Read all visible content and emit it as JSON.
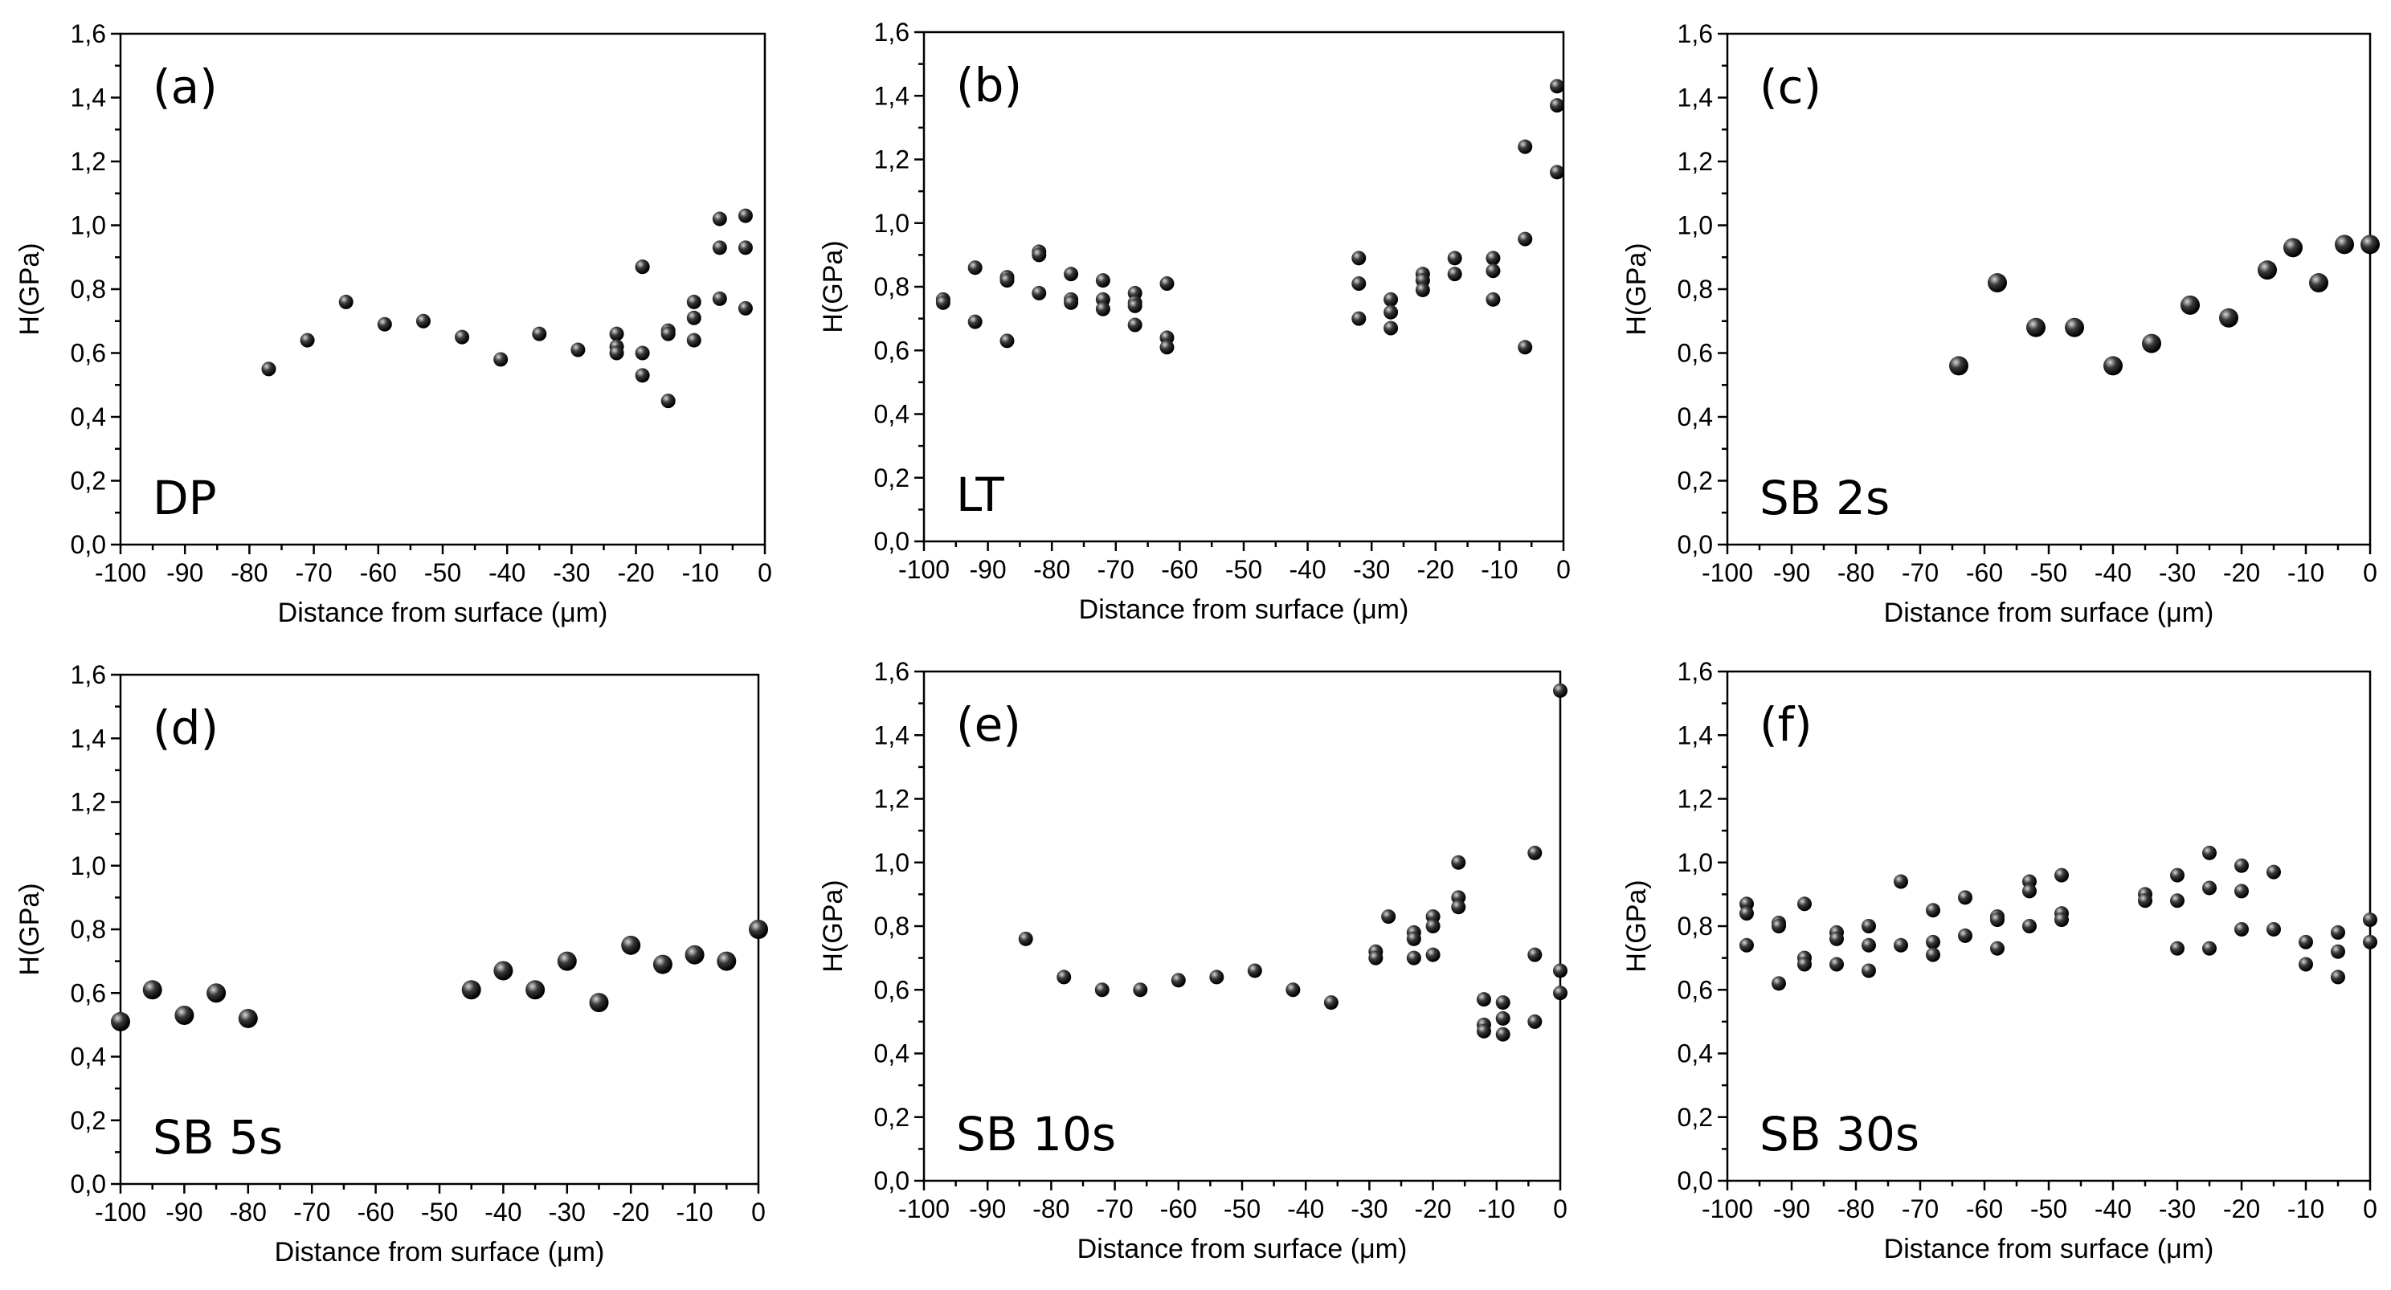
{
  "figure": {
    "description_text": ""
  },
  "chart_data": [
    {
      "type": "scatter",
      "panel": "(a)",
      "name": "DP",
      "xlabel": "Distance from surface (μm)",
      "ylabel": "H(GPa)",
      "xlim": [
        -100,
        0
      ],
      "ylim": [
        0,
        1.6
      ],
      "xticks": [
        "-100",
        "-90",
        "-80",
        "-70",
        "-60",
        "-50",
        "-40",
        "-30",
        "-20",
        "-10",
        "0"
      ],
      "yticks": [
        "0,0",
        "0,2",
        "0,4",
        "0,6",
        "0,8",
        "1,0",
        "1,2",
        "1,4",
        "1,6"
      ],
      "x": [
        -77,
        -71,
        -65,
        -59,
        -53,
        -47,
        -41,
        -35,
        -29,
        -23,
        -23,
        -23,
        -19,
        -19,
        -19,
        -19,
        -15,
        -15,
        -15,
        -11,
        -11,
        -11,
        -7,
        -7,
        -7,
        -3,
        -3,
        -3
      ],
      "y": [
        0.55,
        0.64,
        0.76,
        0.69,
        0.7,
        0.65,
        0.58,
        0.66,
        0.61,
        0.66,
        0.62,
        0.6,
        0.87,
        0.6,
        0.53,
        0.87,
        0.67,
        0.66,
        0.45,
        0.76,
        0.71,
        0.64,
        1.02,
        0.93,
        0.77,
        1.03,
        0.93,
        0.74
      ]
    },
    {
      "type": "scatter",
      "panel": "(b)",
      "name": "LT",
      "xlabel": "Distance from surface (μm)",
      "ylabel": "H(GPa)",
      "xlim": [
        -100,
        0
      ],
      "ylim": [
        0,
        1.6
      ],
      "xticks": [
        "-100",
        "-90",
        "-80",
        "-70",
        "-60",
        "-50",
        "-40",
        "-30",
        "-20",
        "-10",
        "0"
      ],
      "yticks": [
        "0,0",
        "0,2",
        "0,4",
        "0,6",
        "0,8",
        "1,0",
        "1,2",
        "1,4",
        "1,6"
      ],
      "x": [
        -97,
        -97,
        -92,
        -92,
        -87,
        -87,
        -87,
        -82,
        -82,
        -82,
        -77,
        -77,
        -77,
        -72,
        -72,
        -72,
        -67,
        -67,
        -67,
        -67,
        -62,
        -62,
        -62,
        -32,
        -32,
        -32,
        -27,
        -27,
        -27,
        -22,
        -22,
        -22,
        -17,
        -17,
        -11,
        -11,
        -11,
        -6,
        -6,
        -6,
        -1,
        -1,
        -1
      ],
      "y": [
        0.76,
        0.75,
        0.86,
        0.69,
        0.83,
        0.82,
        0.63,
        0.91,
        0.9,
        0.78,
        0.84,
        0.76,
        0.75,
        0.82,
        0.76,
        0.73,
        0.78,
        0.75,
        0.74,
        0.68,
        0.81,
        0.64,
        0.61,
        0.89,
        0.81,
        0.7,
        0.76,
        0.72,
        0.67,
        0.84,
        0.82,
        0.79,
        0.89,
        0.84,
        0.89,
        0.85,
        0.76,
        1.24,
        0.95,
        0.61,
        1.43,
        1.37,
        1.16
      ]
    },
    {
      "type": "scatter",
      "panel": "(c)",
      "name": "SB 2s",
      "xlabel": "Distance from surface (μm)",
      "ylabel": "H(GPa)",
      "xlim": [
        -100,
        0
      ],
      "ylim": [
        0,
        1.6
      ],
      "xticks": [
        "-100",
        "-90",
        "-80",
        "-70",
        "-60",
        "-50",
        "-40",
        "-30",
        "-20",
        "-10",
        "0"
      ],
      "yticks": [
        "0,0",
        "0,2",
        "0,4",
        "0,6",
        "0,8",
        "1,0",
        "1,2",
        "1,4",
        "1,6"
      ],
      "x": [
        -64,
        -58,
        -52,
        -46,
        -40,
        -34,
        -28,
        -22,
        -16,
        -12,
        -8,
        -4,
        0
      ],
      "y": [
        0.56,
        0.82,
        0.68,
        0.68,
        0.56,
        0.63,
        0.75,
        0.71,
        0.86,
        0.93,
        0.82,
        0.94,
        0.94
      ]
    },
    {
      "type": "scatter",
      "panel": "(d)",
      "name": "SB 5s",
      "xlabel": "Distance from surface (μm)",
      "ylabel": "H(GPa)",
      "xlim": [
        -100,
        0
      ],
      "ylim": [
        0,
        1.6
      ],
      "xticks": [
        "-100",
        "-90",
        "-80",
        "-70",
        "-60",
        "-50",
        "-40",
        "-30",
        "-20",
        "-10",
        "0"
      ],
      "yticks": [
        "0,0",
        "0,2",
        "0,4",
        "0,6",
        "0,8",
        "1,0",
        "1,2",
        "1,4",
        "1,6"
      ],
      "x": [
        -100,
        -95,
        -90,
        -85,
        -80,
        -45,
        -40,
        -35,
        -30,
        -25,
        -20,
        -15,
        -10,
        -5,
        0
      ],
      "y": [
        0.51,
        0.61,
        0.53,
        0.6,
        0.52,
        0.61,
        0.67,
        0.61,
        0.7,
        0.57,
        0.75,
        0.69,
        0.72,
        0.7,
        0.8
      ]
    },
    {
      "type": "scatter",
      "panel": "(e)",
      "name": "SB 10s",
      "xlabel": "Distance from surface (μm)",
      "ylabel": "H(GPa)",
      "xlim": [
        -100,
        0
      ],
      "ylim": [
        0,
        1.6
      ],
      "xticks": [
        "-100",
        "-90",
        "-80",
        "-70",
        "-60",
        "-50",
        "-40",
        "-30",
        "-20",
        "-10",
        "0"
      ],
      "yticks": [
        "0,0",
        "0,2",
        "0,4",
        "0,6",
        "0,8",
        "1,0",
        "1,2",
        "1,4",
        "1,6"
      ],
      "x": [
        -84,
        -78,
        -72,
        -66,
        -60,
        -54,
        -48,
        -42,
        -36,
        -29,
        -29,
        -27,
        -23,
        -23,
        -23,
        -20,
        -20,
        -20,
        -16,
        -16,
        -16,
        -12,
        -12,
        -12,
        -9,
        -9,
        -9,
        -4,
        -4,
        -4,
        0,
        0,
        0
      ],
      "y": [
        0.76,
        0.64,
        0.6,
        0.6,
        0.63,
        0.64,
        0.66,
        0.6,
        0.56,
        0.72,
        0.7,
        0.83,
        0.78,
        0.76,
        0.7,
        0.83,
        0.8,
        0.71,
        1.0,
        0.89,
        0.86,
        0.57,
        0.49,
        0.47,
        0.56,
        0.51,
        0.46,
        1.03,
        0.71,
        0.5,
        1.54,
        0.66,
        0.59
      ]
    },
    {
      "type": "scatter",
      "panel": "(f)",
      "name": "SB 30s",
      "xlabel": "Distance from surface (μm)",
      "ylabel": "H(GPa)",
      "xlim": [
        -100,
        0
      ],
      "ylim": [
        0,
        1.6
      ],
      "xticks": [
        "-100",
        "-90",
        "-80",
        "-70",
        "-60",
        "-50",
        "-40",
        "-30",
        "-20",
        "-10",
        "0"
      ],
      "yticks": [
        "0,0",
        "0,2",
        "0,4",
        "0,6",
        "0,8",
        "1,0",
        "1,2",
        "1,4",
        "1,6"
      ],
      "x": [
        -97,
        -97,
        -97,
        -92,
        -92,
        -92,
        -88,
        -88,
        -88,
        -83,
        -83,
        -83,
        -78,
        -78,
        -78,
        -73,
        -73,
        -68,
        -68,
        -68,
        -63,
        -63,
        -58,
        -58,
        -58,
        -53,
        -53,
        -53,
        -48,
        -48,
        -48,
        -35,
        -35,
        -30,
        -30,
        -30,
        -25,
        -25,
        -25,
        -20,
        -20,
        -20,
        -15,
        -15,
        -10,
        -10,
        -5,
        -5,
        -5,
        0,
        0
      ],
      "y": [
        0.87,
        0.84,
        0.74,
        0.81,
        0.8,
        0.62,
        0.87,
        0.7,
        0.68,
        0.78,
        0.76,
        0.68,
        0.8,
        0.74,
        0.66,
        0.94,
        0.74,
        0.85,
        0.75,
        0.71,
        0.89,
        0.77,
        0.83,
        0.82,
        0.73,
        0.94,
        0.91,
        0.8,
        0.96,
        0.84,
        0.82,
        0.9,
        0.88,
        0.96,
        0.88,
        0.73,
        1.03,
        0.92,
        0.73,
        0.99,
        0.91,
        0.79,
        0.97,
        0.79,
        0.75,
        0.68,
        0.78,
        0.72,
        0.64,
        0.82,
        0.75
      ]
    }
  ]
}
